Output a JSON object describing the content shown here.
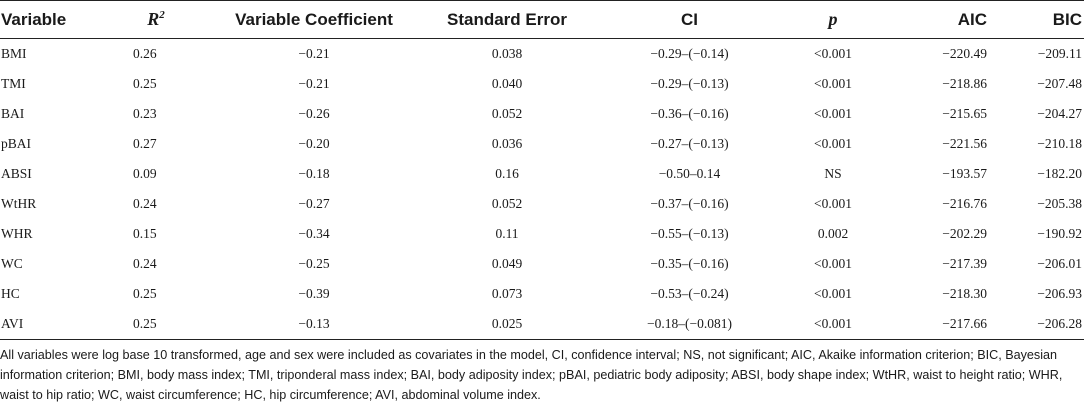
{
  "headers": {
    "variable": "Variable",
    "r2_base": "R",
    "r2_sup": "2",
    "coef": "Variable Coefficient",
    "se": "Standard Error",
    "ci": "CI",
    "p": "p",
    "aic": "AIC",
    "bic": "BIC"
  },
  "rows": [
    {
      "variable": "BMI",
      "r2": "0.26",
      "coef": "−0.21",
      "se": "0.038",
      "ci": "−0.29–(−0.14)",
      "p": "<0.001",
      "aic": "−220.49",
      "bic": "−209.11"
    },
    {
      "variable": "TMI",
      "r2": "0.25",
      "coef": "−0.21",
      "se": "0.040",
      "ci": "−0.29–(−0.13)",
      "p": "<0.001",
      "aic": "−218.86",
      "bic": "−207.48"
    },
    {
      "variable": "BAI",
      "r2": "0.23",
      "coef": "−0.26",
      "se": "0.052",
      "ci": "−0.36–(−0.16)",
      "p": "<0.001",
      "aic": "−215.65",
      "bic": "−204.27"
    },
    {
      "variable": "pBAI",
      "r2": "0.27",
      "coef": "−0.20",
      "se": "0.036",
      "ci": "−0.27–(−0.13)",
      "p": "<0.001",
      "aic": "−221.56",
      "bic": "−210.18"
    },
    {
      "variable": "ABSI",
      "r2": "0.09",
      "coef": "−0.18",
      "se": "0.16",
      "ci": "−0.50–0.14",
      "p": "NS",
      "aic": "−193.57",
      "bic": "−182.20"
    },
    {
      "variable": "WtHR",
      "r2": "0.24",
      "coef": "−0.27",
      "se": "0.052",
      "ci": "−0.37–(−0.16)",
      "p": "<0.001",
      "aic": "−216.76",
      "bic": "−205.38"
    },
    {
      "variable": "WHR",
      "r2": "0.15",
      "coef": "−0.34",
      "se": "0.11",
      "ci": "−0.55–(−0.13)",
      "p": "0.002",
      "aic": "−202.29",
      "bic": "−190.92"
    },
    {
      "variable": "WC",
      "r2": "0.24",
      "coef": "−0.25",
      "se": "0.049",
      "ci": "−0.35–(−0.16)",
      "p": "<0.001",
      "aic": "−217.39",
      "bic": "−206.01"
    },
    {
      "variable": "HC",
      "r2": "0.25",
      "coef": "−0.39",
      "se": "0.073",
      "ci": "−0.53–(−0.24)",
      "p": "<0.001",
      "aic": "−218.30",
      "bic": "−206.93"
    },
    {
      "variable": "AVI",
      "r2": "0.25",
      "coef": "−0.13",
      "se": "0.025",
      "ci": "−0.18–(−0.081)",
      "p": "<0.001",
      "aic": "−217.66",
      "bic": "−206.28"
    }
  ],
  "footnote": "All variables were log base 10 transformed, age and sex were included as covariates in the model, CI, confidence interval; NS, not significant; AIC, Akaike information criterion; BIC, Bayesian information criterion; BMI, body mass index; TMI, triponderal mass index; BAI, body adiposity index; pBAI, pediatric body adiposity; ABSI, body shape index; WtHR, waist to height ratio; WHR, waist to hip ratio; WC, waist circumference; HC, hip circumference; AVI, abdominal volume index."
}
